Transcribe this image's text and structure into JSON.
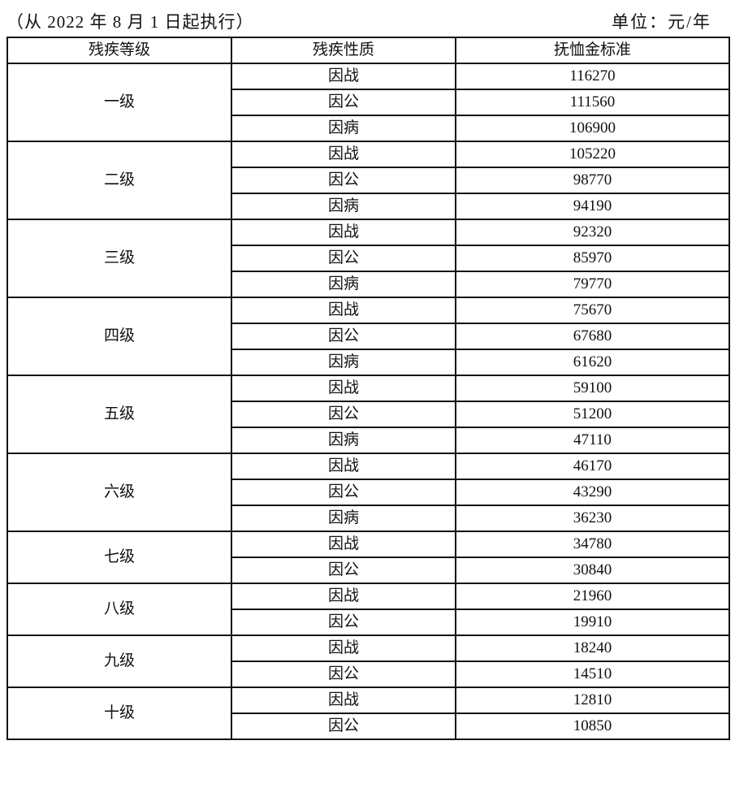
{
  "caption": {
    "effective_date": "（从 2022 年 8 月 1 日起执行）",
    "unit": "单位：元/年"
  },
  "table": {
    "headers": [
      "残疾等级",
      "残疾性质",
      "抚恤金标准"
    ],
    "groups": [
      {
        "grade": "一级",
        "rows": [
          {
            "nature": "因战",
            "amount": "116270"
          },
          {
            "nature": "因公",
            "amount": "111560"
          },
          {
            "nature": "因病",
            "amount": "106900"
          }
        ]
      },
      {
        "grade": "二级",
        "rows": [
          {
            "nature": "因战",
            "amount": "105220"
          },
          {
            "nature": "因公",
            "amount": "98770"
          },
          {
            "nature": "因病",
            "amount": "94190"
          }
        ]
      },
      {
        "grade": "三级",
        "rows": [
          {
            "nature": "因战",
            "amount": "92320"
          },
          {
            "nature": "因公",
            "amount": "85970"
          },
          {
            "nature": "因病",
            "amount": "79770"
          }
        ]
      },
      {
        "grade": "四级",
        "rows": [
          {
            "nature": "因战",
            "amount": "75670"
          },
          {
            "nature": "因公",
            "amount": "67680"
          },
          {
            "nature": "因病",
            "amount": "61620"
          }
        ]
      },
      {
        "grade": "五级",
        "rows": [
          {
            "nature": "因战",
            "amount": "59100"
          },
          {
            "nature": "因公",
            "amount": "51200"
          },
          {
            "nature": "因病",
            "amount": "47110"
          }
        ]
      },
      {
        "grade": "六级",
        "rows": [
          {
            "nature": "因战",
            "amount": "46170"
          },
          {
            "nature": "因公",
            "amount": "43290"
          },
          {
            "nature": "因病",
            "amount": "36230"
          }
        ]
      },
      {
        "grade": "七级",
        "rows": [
          {
            "nature": "因战",
            "amount": "34780"
          },
          {
            "nature": "因公",
            "amount": "30840"
          }
        ]
      },
      {
        "grade": "八级",
        "rows": [
          {
            "nature": "因战",
            "amount": "21960"
          },
          {
            "nature": "因公",
            "amount": "19910"
          }
        ]
      },
      {
        "grade": "九级",
        "rows": [
          {
            "nature": "因战",
            "amount": "18240"
          },
          {
            "nature": "因公",
            "amount": "14510"
          }
        ]
      },
      {
        "grade": "十级",
        "rows": [
          {
            "nature": "因战",
            "amount": "12810"
          },
          {
            "nature": "因公",
            "amount": "10850"
          }
        ]
      }
    ]
  }
}
